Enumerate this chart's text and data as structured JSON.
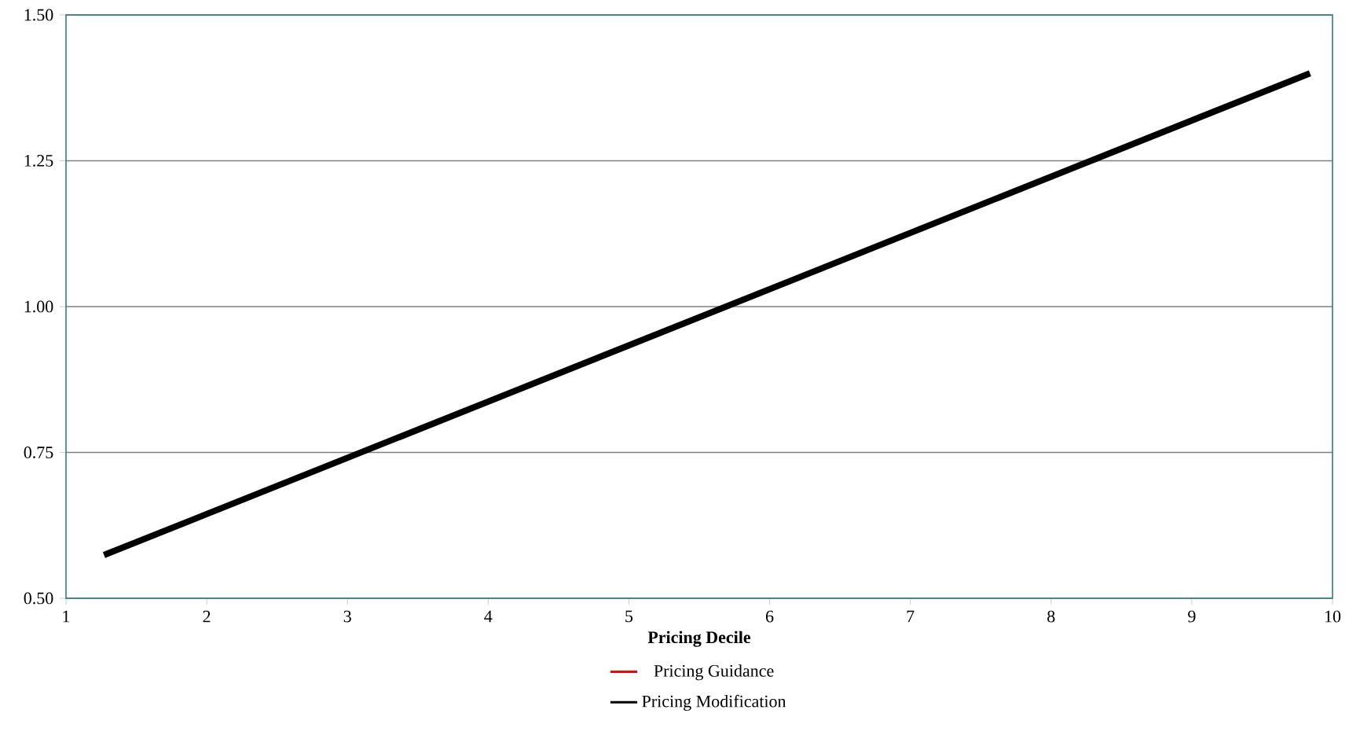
{
  "chart_data": {
    "type": "line",
    "xlabel": "Pricing Decile",
    "x": [
      1.27,
      9.84
    ],
    "series": [
      {
        "name": "Pricing Guidance",
        "color": "#ff0000",
        "values": [
          null,
          null
        ]
      },
      {
        "name": "Pricing Modification",
        "color": "#000000",
        "values": [
          0.574,
          1.4
        ]
      }
    ],
    "xlim": [
      1,
      10
    ],
    "xticks": [
      1,
      2,
      3,
      4,
      5,
      6,
      7,
      8,
      9,
      10
    ],
    "ylim": [
      0.5,
      1.5
    ],
    "yticks": [
      {
        "value": 0.5,
        "label": "0.50"
      },
      {
        "value": 0.75,
        "label": "0.75"
      },
      {
        "value": 1.0,
        "label": "1.00"
      },
      {
        "value": 1.25,
        "label": "1.25"
      },
      {
        "value": 1.5,
        "label": "1.50"
      }
    ],
    "grid": "y",
    "legend": "bottom",
    "line_style": "solid",
    "marker": "none"
  }
}
